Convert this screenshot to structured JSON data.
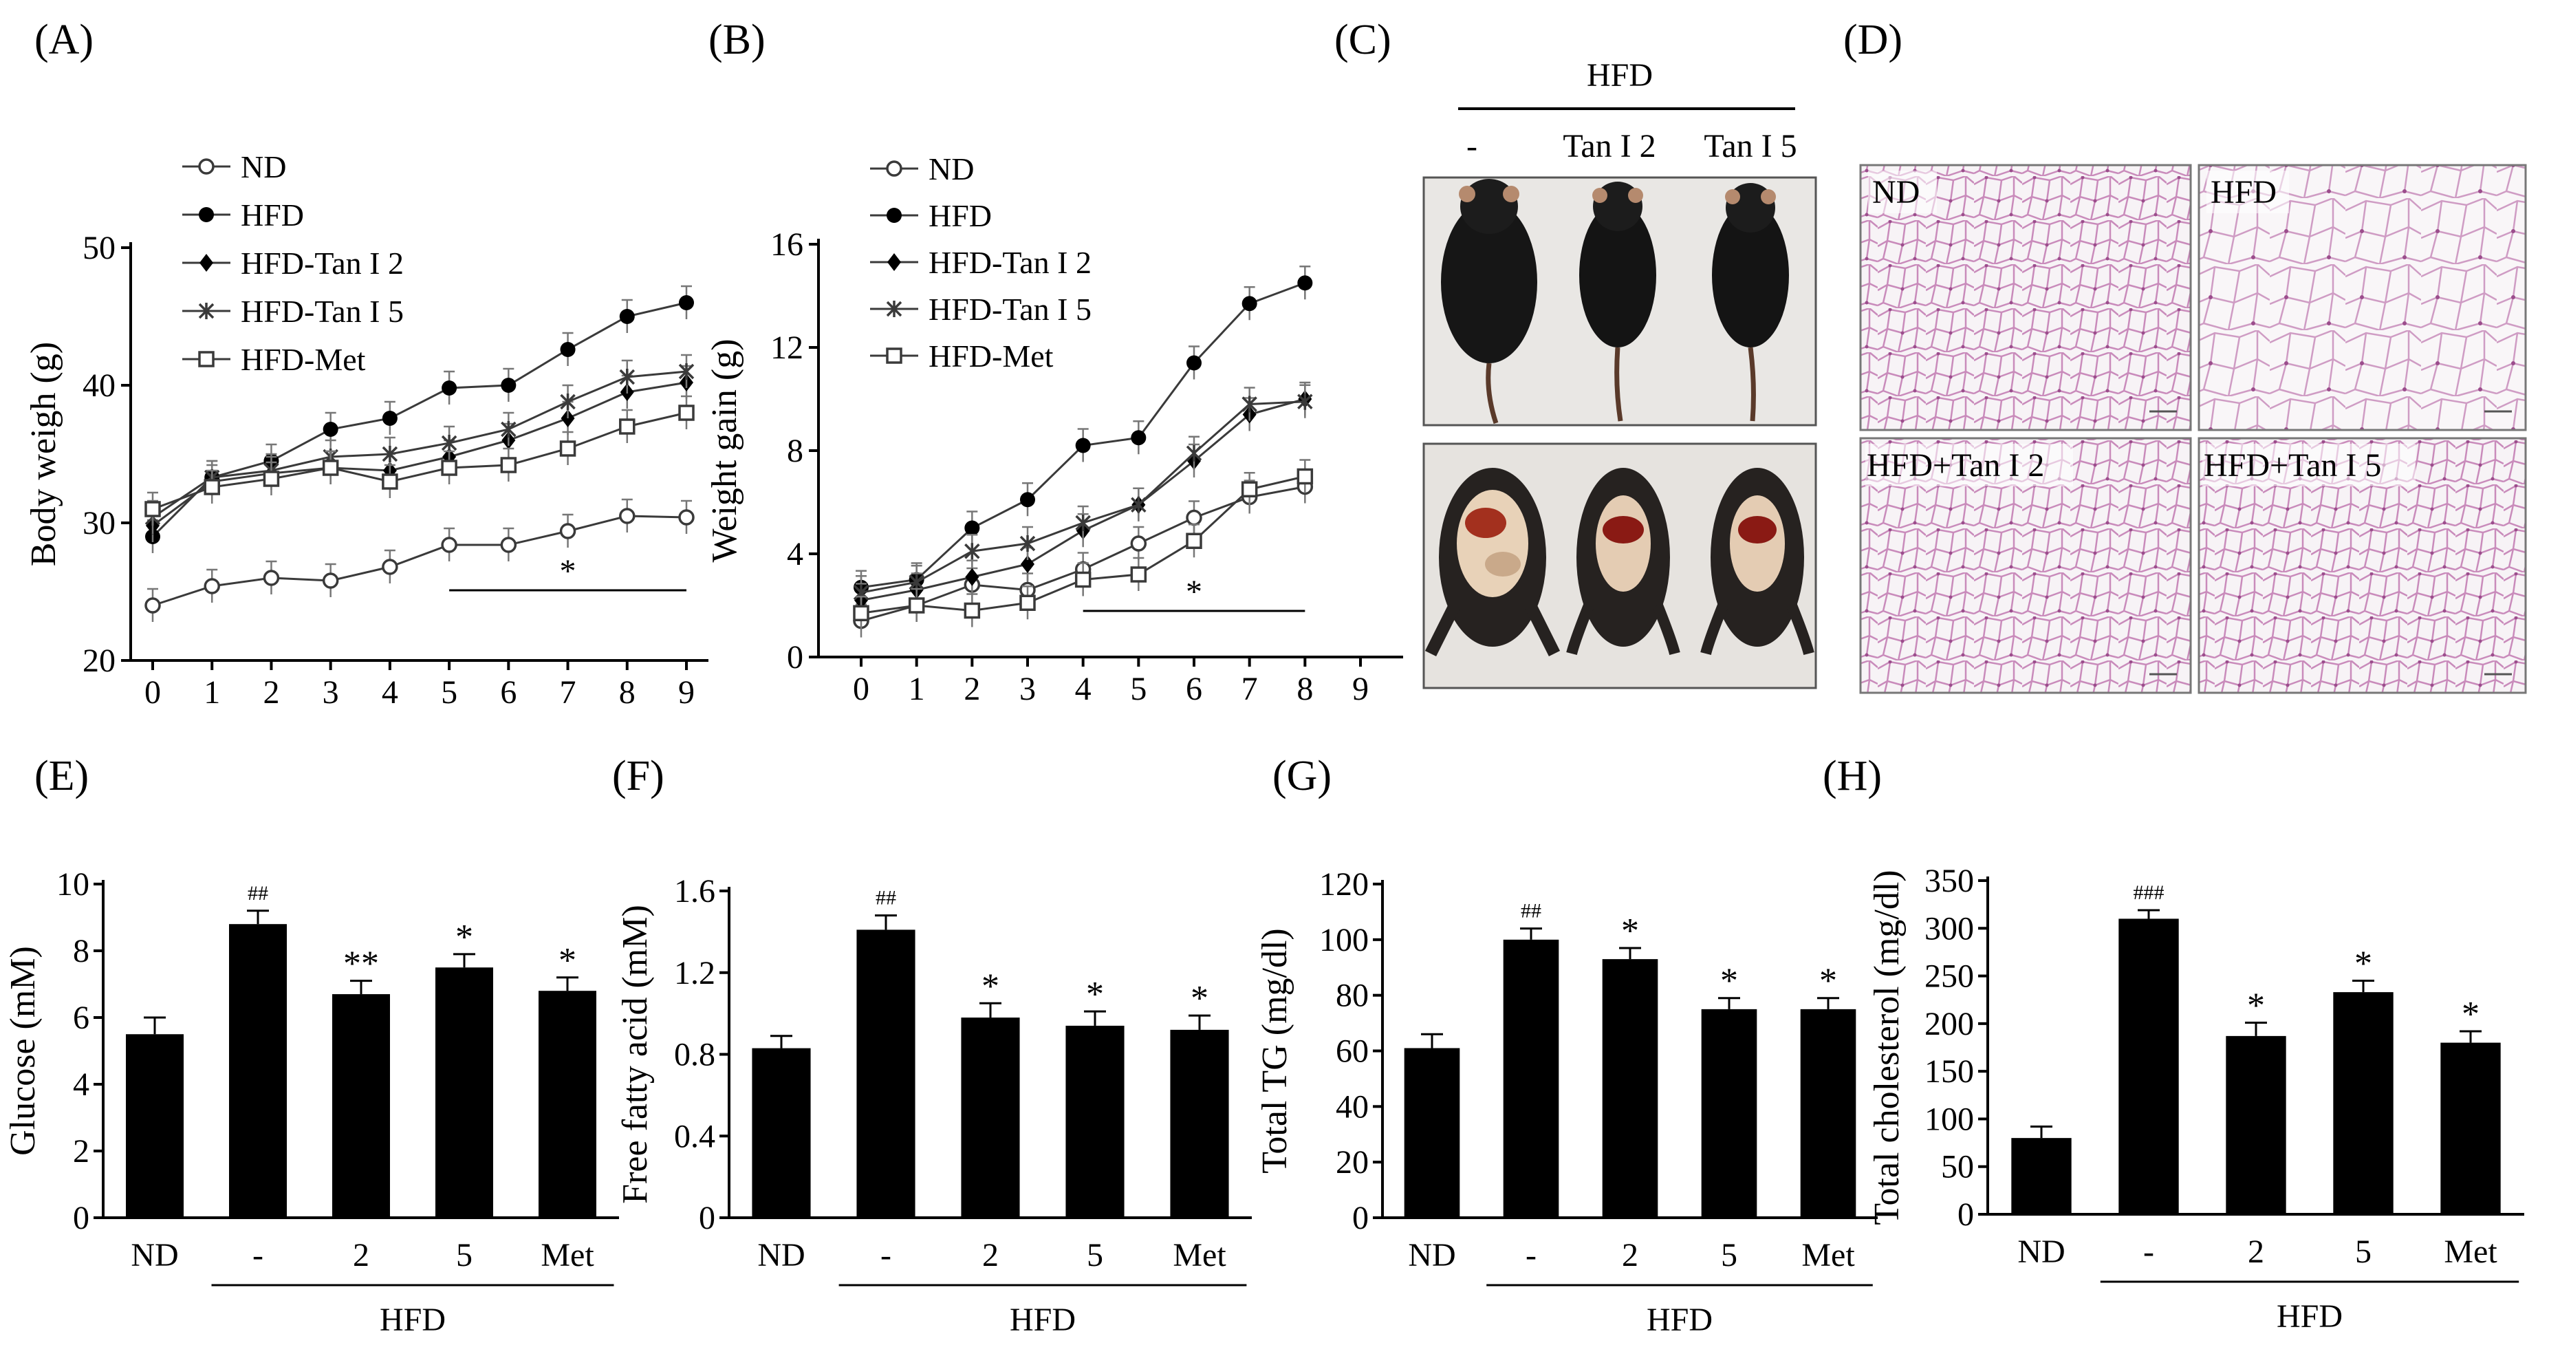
{
  "figure": {
    "panel_labels": [
      "(A)",
      "(B)",
      "(C)",
      "(D)",
      "(E)",
      "(F)",
      "(G)",
      "(H)"
    ],
    "panel_c": {
      "header": "HFD",
      "columns": [
        "-",
        "Tan I 2",
        "Tan I 5"
      ],
      "photos": [
        "mice-dorsal-photo",
        "mice-ventral-dissection-photo"
      ]
    },
    "panel_d": {
      "labels": [
        "ND",
        "HFD",
        "HFD+Tan I 2",
        "HFD+Tan I 5"
      ],
      "photos": [
        "adipose-histology-photo"
      ]
    },
    "colors": {
      "series": "#3a3a3a",
      "bar": "#000000",
      "tissue_bg": "#f6f2f5",
      "tissue_stain": "#c77fb2"
    }
  },
  "chart_data": [
    {
      "id": "A",
      "type": "line",
      "ylabel": "Body weigh (g)",
      "x": [
        0,
        1,
        2,
        3,
        4,
        5,
        6,
        7,
        8,
        9
      ],
      "xticks": [
        "0",
        "1",
        "2",
        "3",
        "4",
        "5",
        "6",
        "7",
        "8",
        "9"
      ],
      "ylim": [
        20,
        50
      ],
      "yticks": [
        "20",
        "30",
        "40",
        "50"
      ],
      "series": [
        {
          "name": "ND",
          "marker": "circle-open",
          "values": [
            24.0,
            25.4,
            26.0,
            25.8,
            26.8,
            28.4,
            28.4,
            29.4,
            30.5,
            30.4
          ]
        },
        {
          "name": "HFD",
          "marker": "circle-filled",
          "values": [
            29.0,
            33.3,
            34.5,
            36.8,
            37.6,
            39.8,
            40.0,
            42.6,
            45.0,
            46.0
          ]
        },
        {
          "name": "HFD-Tan I 2",
          "marker": "diamond-filled",
          "values": [
            29.8,
            33.0,
            33.6,
            34.0,
            33.8,
            34.8,
            36.0,
            37.6,
            39.5,
            40.2
          ]
        },
        {
          "name": "HFD-Tan I 5",
          "marker": "asterisk",
          "values": [
            30.4,
            33.3,
            33.8,
            34.8,
            35.0,
            35.8,
            36.8,
            38.8,
            40.6,
            41.0
          ]
        },
        {
          "name": "HFD-Met",
          "marker": "square-open",
          "values": [
            31.0,
            32.6,
            33.2,
            34.0,
            33.0,
            34.0,
            34.2,
            35.4,
            37.0,
            38.0
          ]
        }
      ],
      "significance": {
        "label": "*",
        "from_x": 5,
        "to_x": 9
      }
    },
    {
      "id": "B",
      "type": "line",
      "ylabel": "Weight  gain (g)",
      "x": [
        0,
        1,
        2,
        3,
        4,
        5,
        6,
        7,
        8
      ],
      "xticks": [
        "0",
        "1",
        "2",
        "3",
        "4",
        "5",
        "6",
        "7",
        "8",
        "9"
      ],
      "ylim": [
        0,
        16
      ],
      "yticks": [
        "0",
        "4",
        "8",
        "12",
        "16"
      ],
      "series": [
        {
          "name": "ND",
          "marker": "circle-open",
          "values": [
            1.4,
            2.0,
            2.8,
            2.6,
            3.4,
            4.4,
            5.4,
            6.2,
            6.6
          ]
        },
        {
          "name": "HFD",
          "marker": "circle-filled",
          "values": [
            2.7,
            3.0,
            5.0,
            6.1,
            8.2,
            8.5,
            11.4,
            13.7,
            14.5
          ]
        },
        {
          "name": "HFD-Tan I 2",
          "marker": "diamond-filled",
          "values": [
            2.2,
            2.6,
            3.1,
            3.6,
            4.9,
            5.9,
            7.6,
            9.4,
            10.0
          ]
        },
        {
          "name": "HFD-Tan I 5",
          "marker": "asterisk",
          "values": [
            2.5,
            2.9,
            4.1,
            4.4,
            5.2,
            5.9,
            7.9,
            9.8,
            9.9
          ]
        },
        {
          "name": "HFD-Met",
          "marker": "square-open",
          "values": [
            1.7,
            2.0,
            1.8,
            2.1,
            3.0,
            3.2,
            4.5,
            6.5,
            7.0
          ]
        }
      ],
      "significance": {
        "label": "*",
        "from_x": 4,
        "to_x": 8
      }
    },
    {
      "id": "E",
      "type": "bar",
      "ylabel": "Glucose (mM)",
      "categories": [
        "ND",
        "-",
        "2",
        "5",
        "Met"
      ],
      "group_label": "HFD",
      "ylim": [
        0,
        10
      ],
      "yticks": [
        "0",
        "2",
        "4",
        "6",
        "8",
        "10"
      ],
      "values": [
        5.5,
        8.8,
        6.7,
        7.5,
        6.8
      ],
      "errors": [
        0.5,
        0.4,
        0.4,
        0.4,
        0.4
      ],
      "annotations": [
        "",
        "##",
        "**",
        "*",
        "*"
      ]
    },
    {
      "id": "F",
      "type": "bar",
      "ylabel": "Free fatty acid (mM)",
      "categories": [
        "ND",
        "-",
        "2",
        "5",
        "Met"
      ],
      "group_label": "HFD",
      "ylim": [
        0,
        1.6
      ],
      "yticks": [
        "0",
        "0.4",
        "0.8",
        "1.2",
        "1.6"
      ],
      "values": [
        0.83,
        1.41,
        0.98,
        0.94,
        0.92
      ],
      "errors": [
        0.06,
        0.07,
        0.07,
        0.07,
        0.07
      ],
      "annotations": [
        "",
        "##",
        "*",
        "*",
        "*"
      ]
    },
    {
      "id": "G",
      "type": "bar",
      "ylabel": "Total TG (mg/dl)",
      "categories": [
        "ND",
        "-",
        "2",
        "5",
        "Met"
      ],
      "group_label": "HFD",
      "ylim": [
        0,
        120
      ],
      "yticks": [
        "0",
        "20",
        "40",
        "60",
        "80",
        "100",
        "120"
      ],
      "values": [
        61,
        100,
        93,
        75,
        75
      ],
      "errors": [
        5,
        4,
        4,
        4,
        4
      ],
      "annotations": [
        "",
        "##",
        "*",
        "*",
        "*"
      ]
    },
    {
      "id": "H",
      "type": "bar",
      "ylabel": "Total cholesterol (mg/dl)",
      "categories": [
        "ND",
        "-",
        "2",
        "5",
        "Met"
      ],
      "group_label": "HFD",
      "ylim": [
        0,
        350
      ],
      "yticks": [
        "0",
        "50",
        "100",
        "150",
        "200",
        "250",
        "300",
        "350"
      ],
      "values": [
        80,
        310,
        187,
        233,
        180
      ],
      "errors": [
        12,
        9,
        14,
        12,
        12
      ],
      "annotations": [
        "",
        "###",
        "*",
        "*",
        "*"
      ]
    }
  ]
}
